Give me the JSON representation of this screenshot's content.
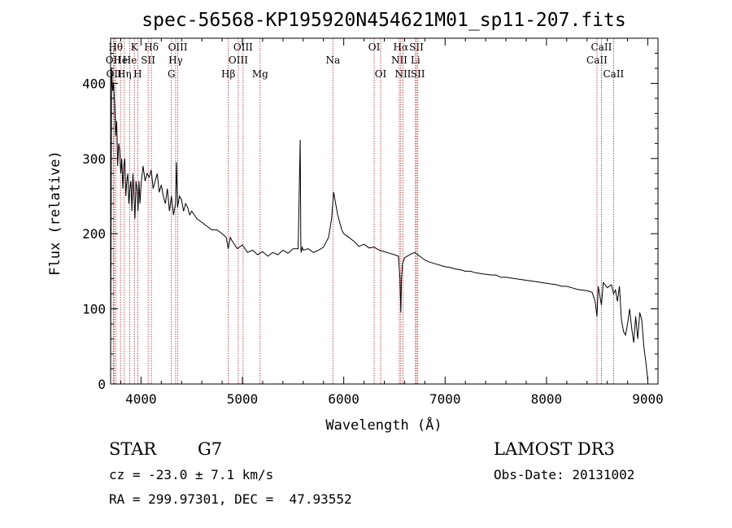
{
  "chart_data": {
    "type": "line",
    "title": "spec-56568-KP195920N454621M01_sp11-207.fits",
    "xlabel": "Wavelength (Å)",
    "ylabel": "Flux (relative)",
    "xlim": [
      3700,
      9100
    ],
    "ylim": [
      0,
      460
    ],
    "xticks": [
      4000,
      5000,
      6000,
      7000,
      8000,
      9000
    ],
    "yticks": [
      0,
      100,
      200,
      300,
      400
    ],
    "grid": false,
    "series": [
      {
        "x": [
          3700,
          3710,
          3720,
          3730,
          3740,
          3750,
          3760,
          3770,
          3780,
          3790,
          3800,
          3810,
          3820,
          3830,
          3840,
          3850,
          3860,
          3870,
          3880,
          3890,
          3900,
          3910,
          3920,
          3930,
          3940,
          3950,
          3960,
          3970,
          3980,
          3990,
          4000,
          4020,
          4040,
          4060,
          4080,
          4100,
          4120,
          4140,
          4160,
          4180,
          4200,
          4220,
          4240,
          4260,
          4280,
          4300,
          4320,
          4340,
          4350,
          4360,
          4380,
          4400,
          4420,
          4440,
          4460,
          4480,
          4500,
          4550,
          4600,
          4650,
          4700,
          4750,
          4800,
          4840,
          4860,
          4880,
          4900,
          4950,
          5000,
          5050,
          5100,
          5150,
          5200,
          5250,
          5300,
          5350,
          5400,
          5450,
          5500,
          5550,
          5570,
          5577,
          5580,
          5590,
          5600,
          5650,
          5700,
          5750,
          5800,
          5850,
          5880,
          5900,
          5920,
          5940,
          5960,
          5980,
          6000,
          6050,
          6100,
          6150,
          6200,
          6250,
          6300,
          6350,
          6400,
          6450,
          6500,
          6540,
          6555,
          6563,
          6570,
          6580,
          6600,
          6650,
          6700,
          6750,
          6800,
          6850,
          6900,
          6950,
          7000,
          7050,
          7100,
          7150,
          7200,
          7250,
          7300,
          7350,
          7400,
          7450,
          7500,
          7550,
          7600,
          7650,
          7700,
          7750,
          7800,
          7850,
          7900,
          7950,
          8000,
          8050,
          8100,
          8150,
          8200,
          8250,
          8300,
          8350,
          8400,
          8450,
          8480,
          8498,
          8510,
          8542,
          8560,
          8600,
          8640,
          8662,
          8680,
          8700,
          8720,
          8740,
          8760,
          8780,
          8800,
          8820,
          8840,
          8860,
          8880,
          8900,
          8920,
          8940,
          8960,
          8980,
          9000
        ],
        "y": [
          5,
          420,
          390,
          400,
          370,
          330,
          350,
          290,
          320,
          310,
          280,
          300,
          260,
          290,
          300,
          250,
          270,
          280,
          240,
          260,
          270,
          230,
          280,
          250,
          220,
          270,
          260,
          230,
          270,
          240,
          265,
          290,
          270,
          280,
          275,
          285,
          260,
          270,
          280,
          255,
          265,
          250,
          240,
          260,
          230,
          250,
          225,
          240,
          295,
          235,
          250,
          245,
          230,
          240,
          235,
          225,
          230,
          220,
          215,
          210,
          205,
          205,
          200,
          195,
          180,
          195,
          190,
          180,
          185,
          175,
          178,
          172,
          176,
          170,
          175,
          172,
          178,
          174,
          180,
          180,
          325,
          180,
          175,
          182,
          178,
          180,
          175,
          178,
          182,
          195,
          220,
          255,
          240,
          225,
          215,
          205,
          200,
          195,
          190,
          183,
          186,
          181,
          182,
          178,
          176,
          174,
          172,
          170,
          140,
          95,
          140,
          160,
          168,
          172,
          175,
          170,
          165,
          162,
          160,
          158,
          156,
          155,
          153,
          152,
          150,
          150,
          148,
          147,
          146,
          145,
          145,
          142,
          142,
          141,
          140,
          139,
          138,
          137,
          136,
          135,
          134,
          133,
          132,
          130,
          130,
          128,
          126,
          125,
          124,
          122,
          110,
          90,
          130,
          105,
          135,
          128,
          132,
          120,
          125,
          110,
          130,
          85,
          70,
          65,
          80,
          100,
          75,
          55,
          90,
          60,
          95,
          85,
          50,
          30,
          5
        ]
      }
    ],
    "line_marks": [
      {
        "wl": 3727,
        "label": "OII",
        "row": 1
      },
      {
        "wl": 3734,
        "label": "OII",
        "row": 2
      },
      {
        "wl": 3750,
        "label": "Hθ",
        "row": 0
      },
      {
        "wl": 3798,
        "label": "He",
        "row": 1
      },
      {
        "wl": 3835,
        "label": "Hη",
        "row": 2
      },
      {
        "wl": 3889,
        "label": "He",
        "row": 1
      },
      {
        "wl": 3934,
        "label": "K",
        "row": 0
      },
      {
        "wl": 3968,
        "label": "H",
        "row": 2
      },
      {
        "wl": 4070,
        "label": "SII",
        "row": 1
      },
      {
        "wl": 4102,
        "label": "Hδ",
        "row": 0
      },
      {
        "wl": 4300,
        "label": "G",
        "row": 2
      },
      {
        "wl": 4341,
        "label": "Hγ",
        "row": 1
      },
      {
        "wl": 4363,
        "label": "OIII",
        "row": 0
      },
      {
        "wl": 4861,
        "label": "Hβ",
        "row": 2
      },
      {
        "wl": 4959,
        "label": "OIII",
        "row": 1
      },
      {
        "wl": 5007,
        "label": "OIII",
        "row": 0
      },
      {
        "wl": 5175,
        "label": "Mg",
        "row": 2
      },
      {
        "wl": 5893,
        "label": "Na",
        "row": 1
      },
      {
        "wl": 6300,
        "label": "OI",
        "row": 0
      },
      {
        "wl": 6364,
        "label": "OI",
        "row": 2
      },
      {
        "wl": 6548,
        "label": "NII",
        "row": 1
      },
      {
        "wl": 6563,
        "label": "Hα",
        "row": 0
      },
      {
        "wl": 6584,
        "label": "NII",
        "row": 2
      },
      {
        "wl": 6707,
        "label": "Li",
        "row": 1
      },
      {
        "wl": 6717,
        "label": "SII",
        "row": 0
      },
      {
        "wl": 6731,
        "label": "SII",
        "row": 2
      },
      {
        "wl": 8498,
        "label": "CaII",
        "row": 1
      },
      {
        "wl": 8542,
        "label": "CaII",
        "row": 0
      },
      {
        "wl": 8662,
        "label": "CaII",
        "row": 2
      }
    ]
  },
  "info": {
    "object_class": "STAR",
    "subclass": "G7",
    "redshift_line": "cz = -23.0 ± 7.1 km/s",
    "coords_line": "RA = 299.97301, DEC =  47.93552",
    "survey": "LAMOST DR3",
    "obs_date": "Obs-Date: 20131002"
  }
}
